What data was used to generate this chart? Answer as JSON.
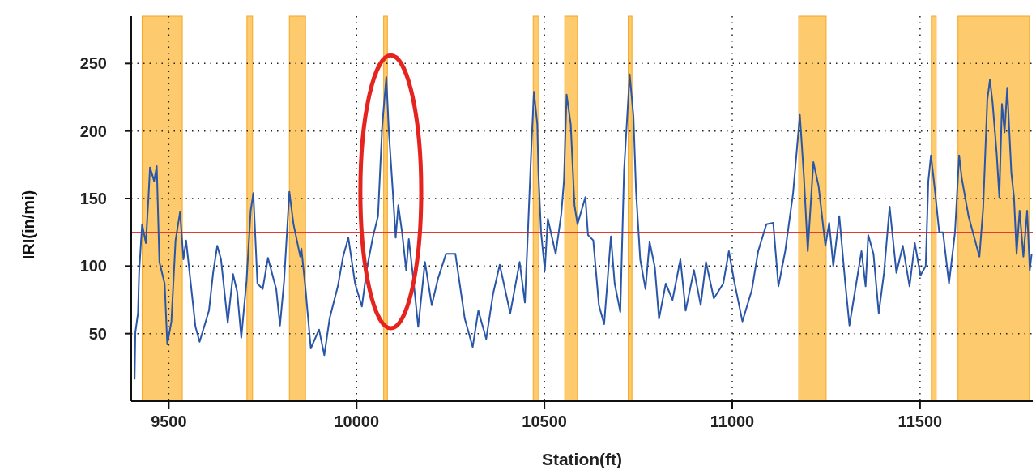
{
  "chart_data": {
    "type": "line",
    "xlabel": "Station(ft)",
    "ylabel": "IRI(in/mi)",
    "xlim": [
      9400,
      11800
    ],
    "ylim": [
      0,
      285
    ],
    "xticks": [
      9500,
      10000,
      10500,
      11000,
      11500
    ],
    "yticks": [
      50,
      100,
      150,
      200,
      250
    ],
    "grid": true,
    "line_style": "solid",
    "series": [
      {
        "color": "#2a56a8",
        "x": [
          9409,
          9411,
          9418,
          9421,
          9429,
          9439,
          9446,
          9450,
          9461,
          9468,
          9475,
          9489,
          9496,
          9507,
          9518,
          9530,
          9539,
          9546,
          9571,
          9582,
          9607,
          9618,
          9629,
          9639,
          9657,
          9671,
          9682,
          9693,
          9707,
          9718,
          9725,
          9736,
          9750,
          9764,
          9786,
          9796,
          9807,
          9821,
          9832,
          9850,
          9853,
          9864,
          9878,
          9900,
          9914,
          9928,
          9950,
          9964,
          9978,
          9996,
          10014,
          10028,
          10043,
          10057,
          10068,
          10079,
          10086,
          10096,
          10104,
          10111,
          10121,
          10132,
          10139,
          10150,
          10164,
          10182,
          10200,
          10217,
          10238,
          10263,
          10288,
          10309,
          10324,
          10345,
          10363,
          10381,
          10409,
          10434,
          10448,
          10456,
          10466,
          10472,
          10481,
          10484,
          10491,
          10501,
          10509,
          10530,
          10545,
          10552,
          10559,
          10570,
          10580,
          10588,
          10609,
          10616,
          10630,
          10645,
          10659,
          10677,
          10687,
          10702,
          10712,
          10727,
          10737,
          10744,
          10755,
          10769,
          10780,
          10794,
          10805,
          10823,
          10841,
          10862,
          10876,
          10898,
          10916,
          10930,
          10951,
          10976,
          10991,
          11005,
          11027,
          11052,
          11069,
          11091,
          11109,
          11123,
          11141,
          11162,
          11180,
          11191,
          11201,
          11216,
          11230,
          11248,
          11258,
          11269,
          11285,
          11301,
          11312,
          11323,
          11344,
          11355,
          11362,
          11376,
          11390,
          11404,
          11419,
          11437,
          11454,
          11472,
          11486,
          11501,
          11515,
          11522,
          11529,
          11540,
          11551,
          11561,
          11577,
          11593,
          11604,
          11611,
          11629,
          11658,
          11668,
          11679,
          11686,
          11693,
          11704,
          11711,
          11718,
          11725,
          11732,
          11743,
          11750,
          11757,
          11765,
          11775,
          11785,
          11792,
          11797
        ],
        "values": [
          16,
          51,
          65,
          95,
          131,
          117,
          151,
          173,
          163,
          174,
          103,
          87,
          42,
          59,
          119,
          140,
          105,
          119,
          55,
          44,
          67,
          95,
          115,
          105,
          58,
          94,
          81,
          47,
          89,
          141,
          154,
          87,
          83,
          106,
          83,
          56,
          89,
          155,
          131,
          107,
          113,
          83,
          39,
          53,
          34,
          61,
          85,
          107,
          121,
          87,
          70,
          99,
          121,
          137,
          203,
          240,
          199,
          157,
          121,
          145,
          125,
          97,
          120,
          93,
          55,
          103,
          71,
          91,
          109,
          109,
          61,
          40,
          67,
          46,
          79,
          101,
          65,
          103,
          73,
          125,
          193,
          229,
          205,
          169,
          125,
          97,
          135,
          109,
          139,
          163,
          227,
          205,
          145,
          131,
          151,
          123,
          119,
          71,
          57,
          122,
          87,
          66,
          171,
          242,
          211,
          155,
          105,
          83,
          118,
          99,
          61,
          87,
          75,
          105,
          67,
          97,
          71,
          103,
          76,
          87,
          111,
          89,
          59,
          82,
          111,
          131,
          132,
          85,
          111,
          154,
          212,
          165,
          111,
          177,
          159,
          115,
          132,
          100,
          137,
          87,
          56,
          75,
          111,
          85,
          123,
          109,
          65,
          95,
          144,
          95,
          115,
          85,
          117,
          93,
          100,
          163,
          182,
          155,
          125,
          125,
          87,
          125,
          182,
          165,
          137,
          107,
          143,
          223,
          238,
          221,
          183,
          151,
          220,
          199,
          232,
          169,
          151,
          109,
          141,
          107,
          141,
          97,
          109
        ]
      }
    ],
    "ref_lines": [
      {
        "axis": "y",
        "value": 125,
        "color": "#e53935"
      }
    ],
    "bands": [
      {
        "axis": "x",
        "from": 9429,
        "to": 9536,
        "color": "#fdcb6e"
      },
      {
        "axis": "x",
        "from": 9708,
        "to": 9723,
        "color": "#fdcb6e"
      },
      {
        "axis": "x",
        "from": 9821,
        "to": 9864,
        "color": "#fdcb6e"
      },
      {
        "axis": "x",
        "from": 10072,
        "to": 10082,
        "color": "#fdcb6e"
      },
      {
        "axis": "x",
        "from": 10470,
        "to": 10485,
        "color": "#fdcb6e"
      },
      {
        "axis": "x",
        "from": 10554,
        "to": 10588,
        "color": "#fdcb6e"
      },
      {
        "axis": "x",
        "from": 10723,
        "to": 10733,
        "color": "#fdcb6e"
      },
      {
        "axis": "x",
        "from": 11177,
        "to": 11250,
        "color": "#fdcb6e"
      },
      {
        "axis": "x",
        "from": 11530,
        "to": 11543,
        "color": "#fdcb6e"
      },
      {
        "axis": "x",
        "from": 11601,
        "to": 11791,
        "color": "#fdcb6e"
      }
    ]
  }
}
